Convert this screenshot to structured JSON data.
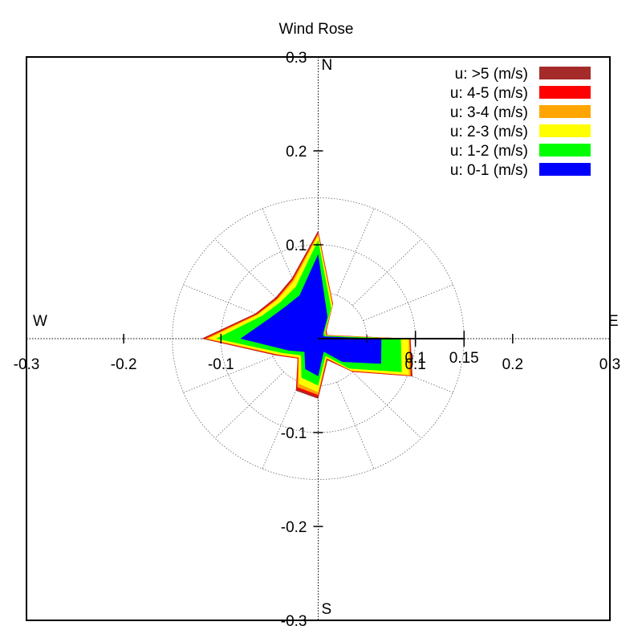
{
  "chart_data": {
    "type": "wind-rose",
    "title": "Wind Rose",
    "xlim": [
      -0.3,
      0.3
    ],
    "ylim": [
      -0.3,
      0.3
    ],
    "x_ticks": [
      "-0.3",
      "-0.2",
      "-0.1",
      "0.1",
      "0.2",
      "0.3"
    ],
    "x_tick_values": [
      -0.3,
      -0.2,
      -0.1,
      0.1,
      0.2,
      0.3
    ],
    "y_ticks": [
      "0.3",
      "0.2",
      "0.1",
      "-0.1",
      "-0.2",
      "-0.3"
    ],
    "y_tick_values": [
      0.3,
      0.2,
      0.1,
      -0.1,
      -0.2,
      -0.3
    ],
    "ring_values": [
      0.05,
      0.1,
      0.15
    ],
    "ring_labels": [
      "0.1",
      "0.15"
    ],
    "ring_label_values": [
      0.1,
      0.15
    ],
    "directions": {
      "north": "N",
      "south": "S",
      "east": "E",
      "west": "W"
    },
    "sector_count": 16,
    "sector_angles_deg": [
      0,
      22.5,
      45,
      67.5,
      90,
      112.5,
      135,
      157.5,
      180,
      202.5,
      225,
      247.5,
      270,
      292.5,
      315,
      337.5
    ],
    "legend_position": "top-right",
    "series": [
      {
        "name": "u: >5 (m/s)",
        "color": "#a52a2a",
        "values": [
          0.115,
          0.04,
          0.012,
          0.01,
          0.095,
          0.105,
          0.05,
          0.025,
          0.064,
          0.06,
          0.03,
          0.047,
          0.12,
          0.07,
          0.062,
          0.07
        ]
      },
      {
        "name": "u: 4-5 (m/s)",
        "color": "#ff0000",
        "values": [
          0.113,
          0.04,
          0.012,
          0.01,
          0.095,
          0.104,
          0.05,
          0.024,
          0.062,
          0.058,
          0.03,
          0.046,
          0.118,
          0.069,
          0.061,
          0.069
        ]
      },
      {
        "name": "u: 3-4 (m/s)",
        "color": "#ffa500",
        "values": [
          0.112,
          0.039,
          0.011,
          0.009,
          0.094,
          0.103,
          0.049,
          0.023,
          0.06,
          0.056,
          0.029,
          0.045,
          0.116,
          0.068,
          0.06,
          0.068
        ]
      },
      {
        "name": "u: 2-3 (m/s)",
        "color": "#ffff00",
        "values": [
          0.11,
          0.038,
          0.01,
          0.009,
          0.093,
          0.101,
          0.048,
          0.022,
          0.057,
          0.052,
          0.028,
          0.044,
          0.113,
          0.067,
          0.059,
          0.066
        ]
      },
      {
        "name": "u: 1-2 (m/s)",
        "color": "#00ff00",
        "values": [
          0.105,
          0.035,
          0.009,
          0.008,
          0.085,
          0.093,
          0.045,
          0.02,
          0.05,
          0.045,
          0.025,
          0.04,
          0.105,
          0.063,
          0.055,
          0.06
        ]
      },
      {
        "name": "u: 0-1 (m/s)",
        "color": "#0000ff",
        "values": [
          0.09,
          0.025,
          0.007,
          0.006,
          0.065,
          0.07,
          0.035,
          0.015,
          0.04,
          0.035,
          0.02,
          0.033,
          0.08,
          0.055,
          0.048,
          0.05
        ]
      }
    ]
  }
}
